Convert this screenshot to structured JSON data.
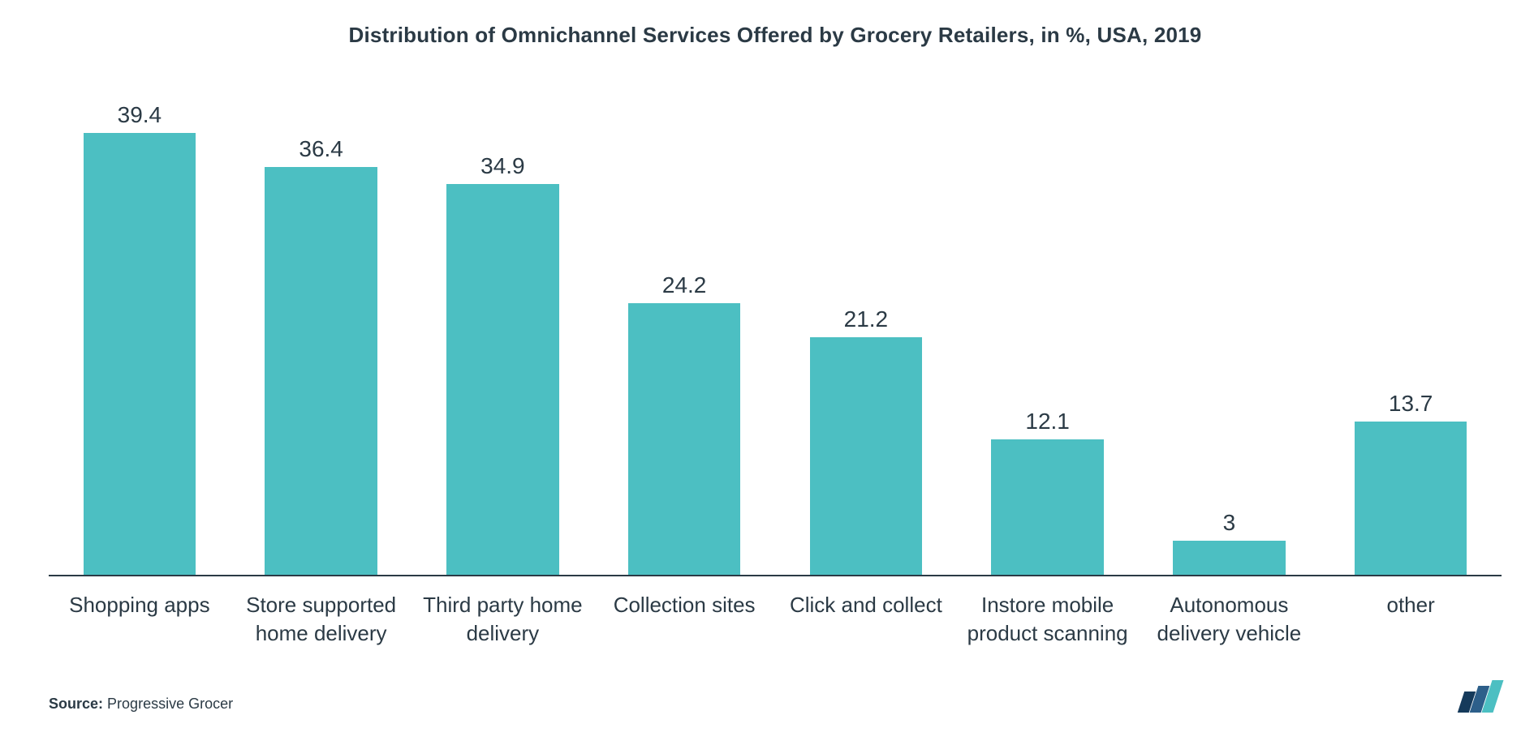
{
  "chart": {
    "type": "bar",
    "title": "Distribution of Omnichannel Services Offered by Grocery Retailers, in %, USA, 2019",
    "title_fontsize": 26,
    "title_color": "#2b3a45",
    "categories": [
      "Shopping apps",
      "Store supported home delivery",
      "Third party home delivery",
      "Collection sites",
      "Click and collect",
      "Instore mobile product scanning",
      "Autonomous delivery vehicle",
      "other"
    ],
    "values": [
      39.4,
      36.4,
      34.9,
      24.2,
      21.2,
      12.1,
      3,
      13.7
    ],
    "value_labels": [
      "39.4",
      "36.4",
      "34.9",
      "24.2",
      "21.2",
      "12.1",
      "3",
      "13.7"
    ],
    "bar_color": "#4cbfc2",
    "background_color": "#ffffff",
    "axis_color": "#2b3a45",
    "value_label_color": "#2b3a45",
    "value_label_fontsize": 28,
    "category_label_color": "#2b3a45",
    "category_label_fontsize": 26,
    "ylim": [
      0,
      45
    ],
    "bar_width": 0.62,
    "source_prefix": "Source:",
    "source_value": "Progressive Grocer",
    "source_fontsize": 18,
    "source_color": "#2b3a45",
    "logo_colors": [
      "#153a5b",
      "#2d5f8a",
      "#4cbfc2"
    ],
    "logo_heights": [
      26,
      33,
      40
    ]
  }
}
